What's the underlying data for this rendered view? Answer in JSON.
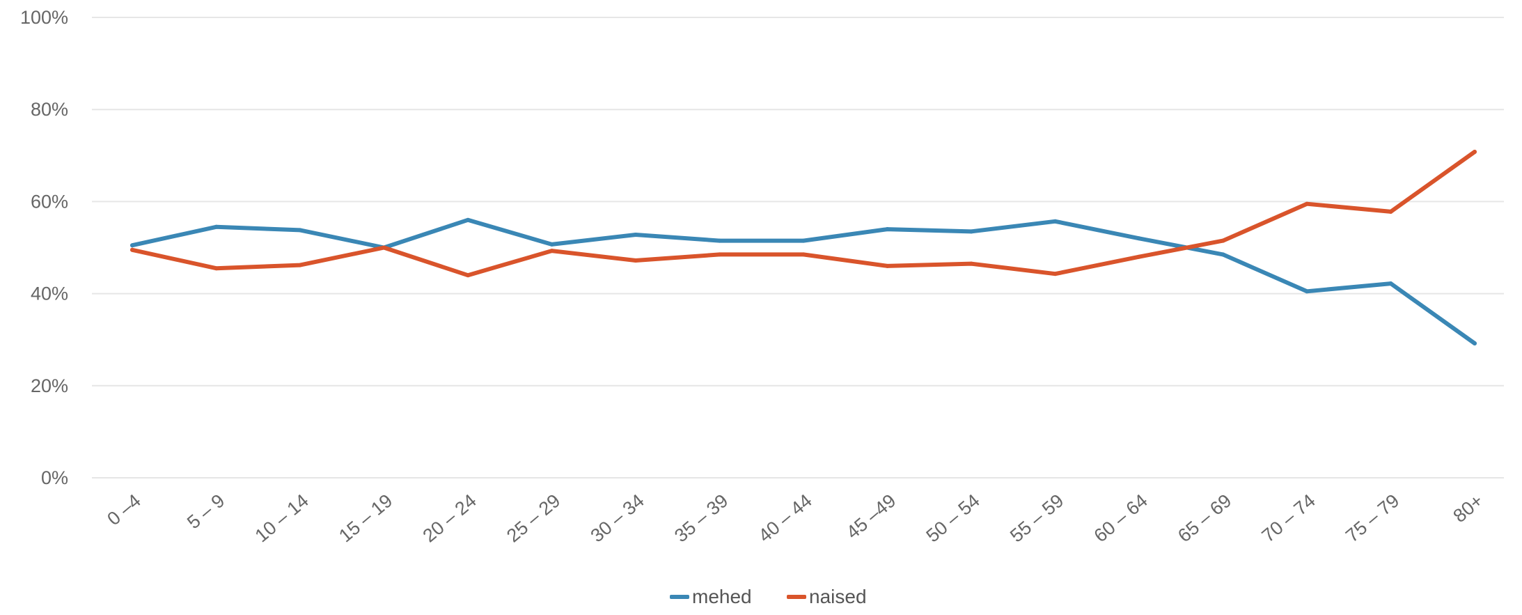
{
  "chart_data": {
    "type": "line",
    "categories": [
      "0 –4",
      "5 – 9",
      "10 – 14",
      "15 – 19",
      "20 – 24",
      "25 – 29",
      "30 – 34",
      "35 – 39",
      "40 – 44",
      "45 –49",
      "50 – 54",
      "55 – 59",
      "60 – 64",
      "65 – 69",
      "70 – 74",
      "75 – 79",
      "80+"
    ],
    "series": [
      {
        "name": "mehed",
        "color": "#3a87b5",
        "values": [
          50.5,
          54.5,
          53.8,
          50.0,
          56.0,
          50.7,
          52.8,
          51.5,
          51.5,
          54.0,
          53.5,
          55.7,
          52.0,
          48.5,
          40.5,
          42.2,
          29.2
        ]
      },
      {
        "name": "naised",
        "color": "#d9542b",
        "values": [
          49.5,
          45.5,
          46.2,
          50.0,
          44.0,
          49.3,
          47.2,
          48.5,
          48.5,
          46.0,
          46.5,
          44.3,
          48.0,
          51.5,
          59.5,
          57.8,
          70.8
        ]
      }
    ],
    "y_ticks": [
      "0%",
      "20%",
      "40%",
      "60%",
      "80%",
      "100%"
    ],
    "ylim": [
      0,
      100
    ],
    "grid": true,
    "legend_position": "bottom"
  }
}
